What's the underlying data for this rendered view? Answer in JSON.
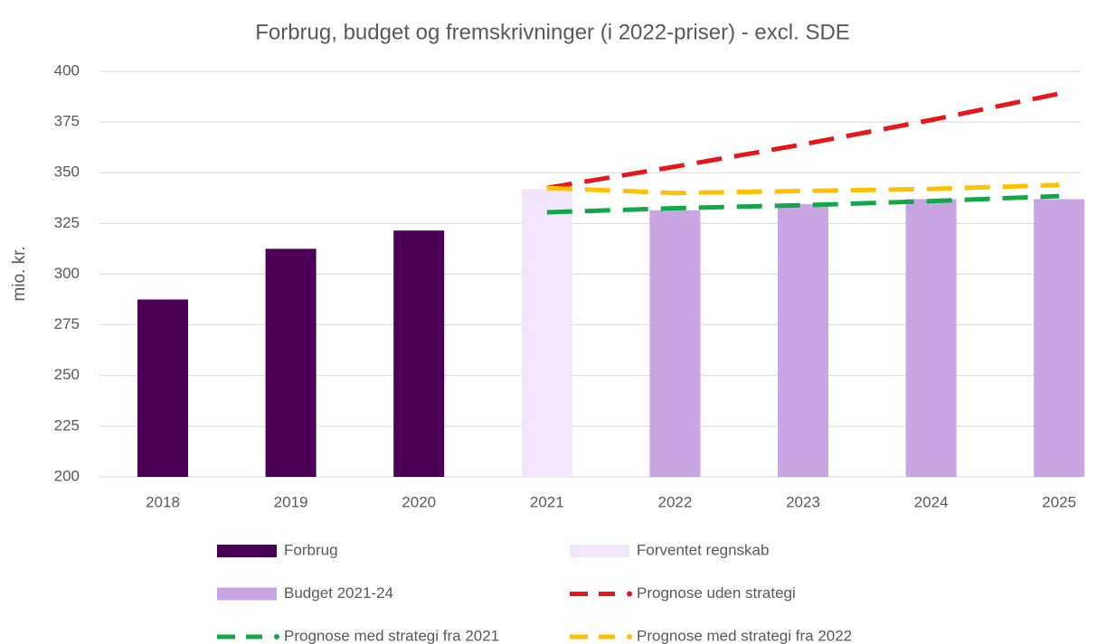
{
  "chart_data": {
    "type": "bar",
    "title": "Forbrug, budget og fremskrivninger (i 2022-priser) - excl. SDE",
    "y_label": "mio. kr.",
    "categories": [
      "2018",
      "2019",
      "2020",
      "2021",
      "2022",
      "2023",
      "2024",
      "2025"
    ],
    "series": [
      {
        "name": "Forbrug",
        "type": "bar",
        "color": "#4b0055",
        "values": [
          287.5,
          312.5,
          321.5,
          null,
          null,
          null,
          null,
          null
        ]
      },
      {
        "name": "Forventet regnskab",
        "type": "bar",
        "color": "#f1e6fb",
        "values": [
          null,
          null,
          null,
          342,
          null,
          null,
          null,
          null
        ]
      },
      {
        "name": "Budget 2021-24",
        "type": "bar",
        "color": "#c8a5e3",
        "values": [
          null,
          null,
          null,
          null,
          331.5,
          334.5,
          337,
          337
        ]
      },
      {
        "name": "Prognose uden strategi",
        "type": "line",
        "color": "#e8161b",
        "values": [
          null,
          null,
          null,
          342.5,
          353,
          364,
          376,
          389
        ]
      },
      {
        "name": "Prognose med strategi fra 2021",
        "type": "line",
        "color": "#12a84a",
        "values": [
          null,
          null,
          null,
          330.5,
          332.5,
          334,
          336,
          338.5
        ]
      },
      {
        "name": "Prognose med strategi fra 2022",
        "type": "line",
        "color": "#ffc000",
        "values": [
          null,
          null,
          null,
          342.5,
          340,
          341,
          342,
          344
        ]
      }
    ],
    "ylim": [
      200,
      400
    ],
    "yticks": [
      200,
      225,
      250,
      275,
      300,
      325,
      350,
      375,
      400
    ],
    "grid": true
  }
}
